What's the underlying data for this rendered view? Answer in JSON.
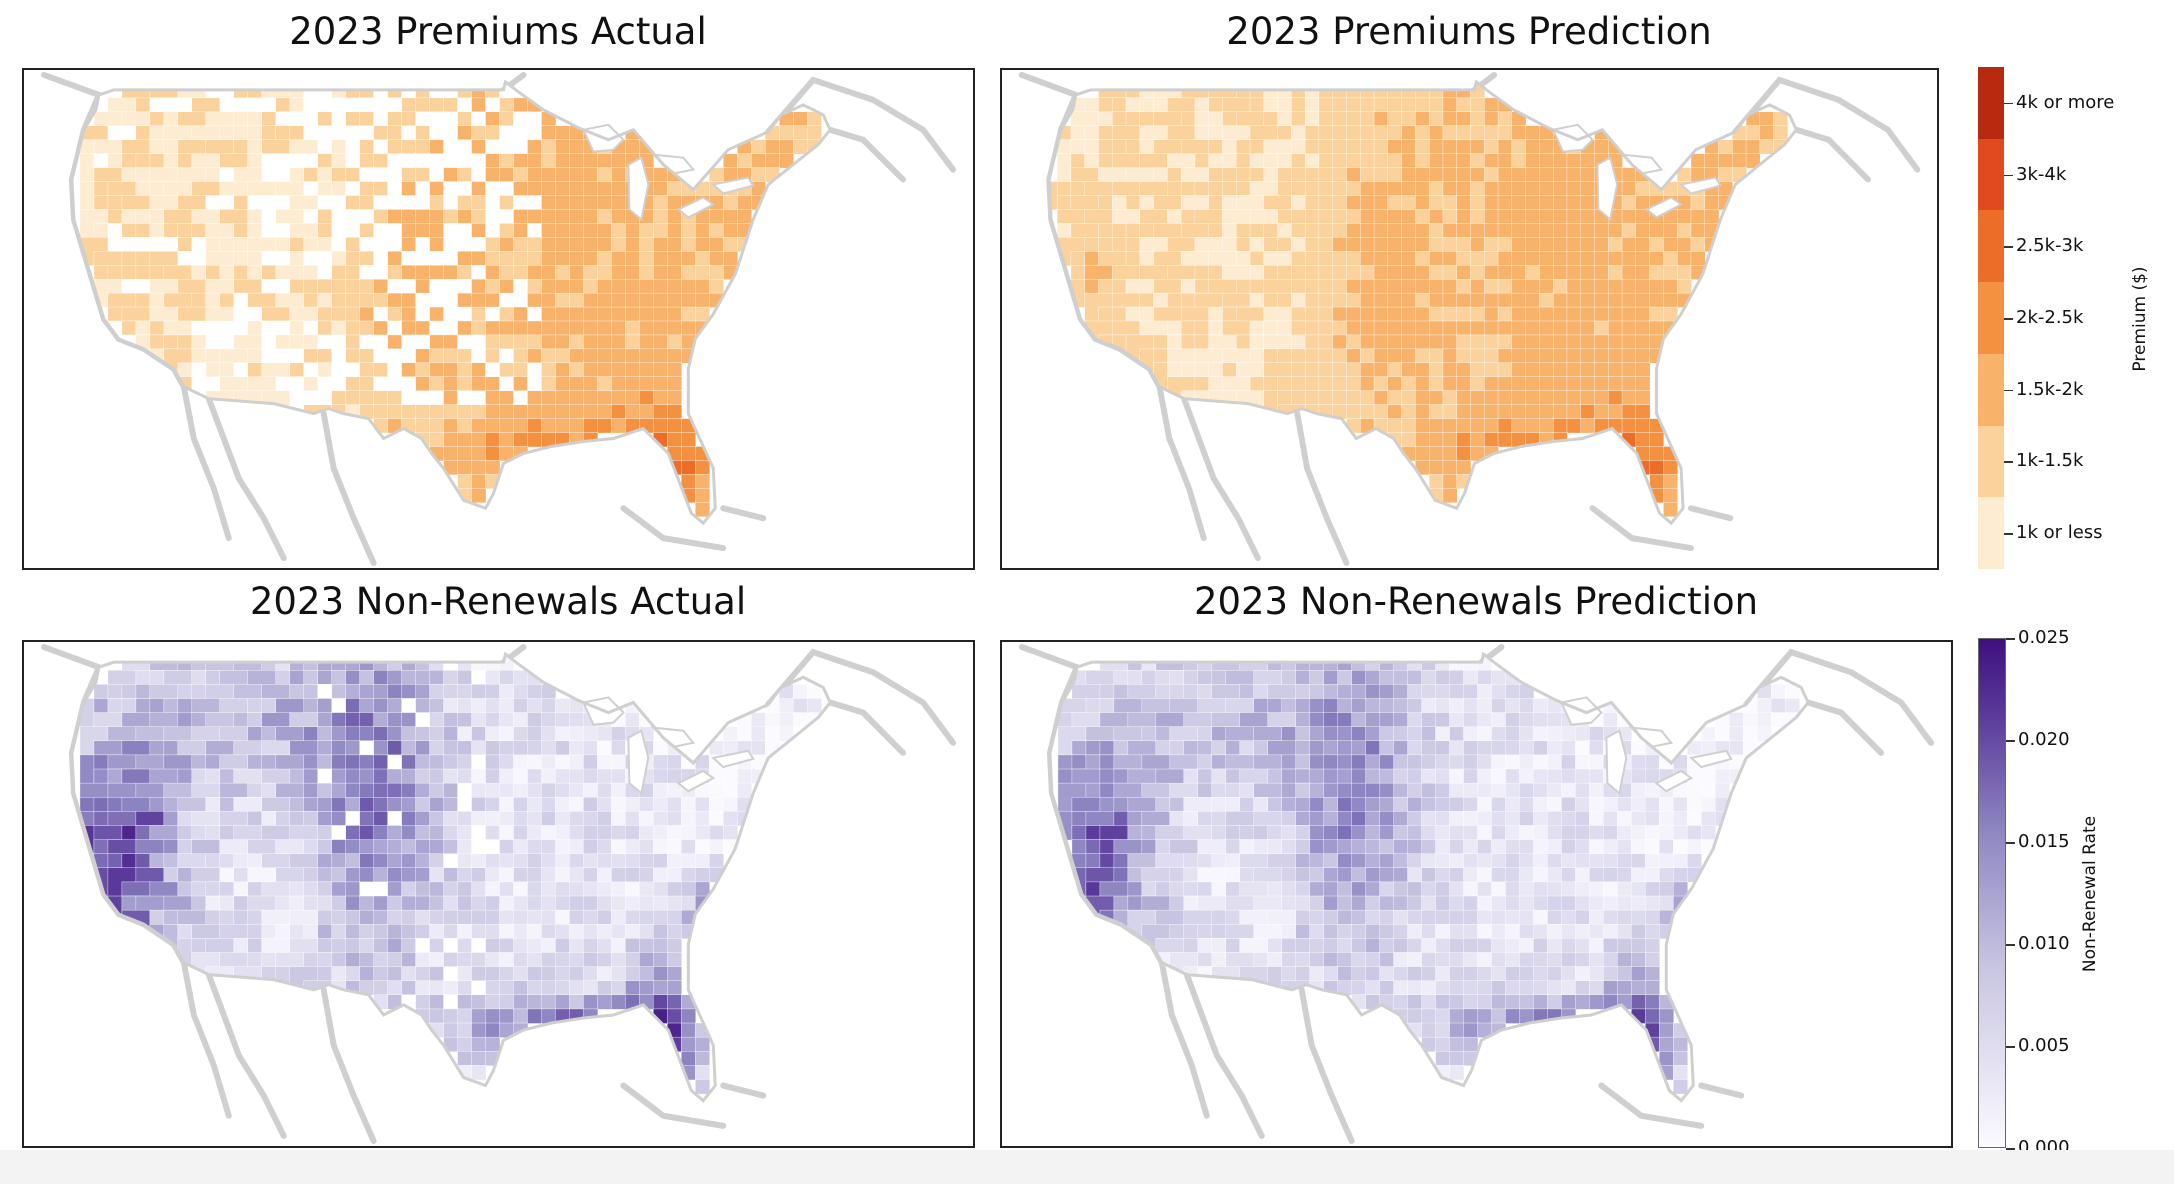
{
  "panels": {
    "premiums_actual": {
      "title": "2023 Premiums Actual"
    },
    "premiums_prediction": {
      "title": "2023 Premiums Prediction"
    },
    "nonrenewals_actual": {
      "title": "2023 Non-Renewals Actual"
    },
    "nonrenewals_prediction": {
      "title": "2023 Non-Renewals Prediction"
    }
  },
  "premium_legend": {
    "title": "Premium ($)",
    "bins": [
      "1k or less",
      "1k-1.5k",
      "1.5k-2k",
      "2k-2.5k",
      "2.5k-3k",
      "3k-4k",
      "4k or more"
    ],
    "colors": [
      "#fdebd2",
      "#fbd29b",
      "#f8b269",
      "#f39141",
      "#ec6d27",
      "#e04a1e",
      "#b72a10"
    ]
  },
  "nonrenewal_legend": {
    "title": "Non-Renewal Rate",
    "ticks": [
      "0.000",
      "0.005",
      "0.010",
      "0.015",
      "0.020",
      "0.025"
    ],
    "color_low": "#fbfaff",
    "color_high": "#3f0f80"
  },
  "colors": {
    "coastline": "#cfcfcf",
    "missing": "#ffffff"
  }
}
